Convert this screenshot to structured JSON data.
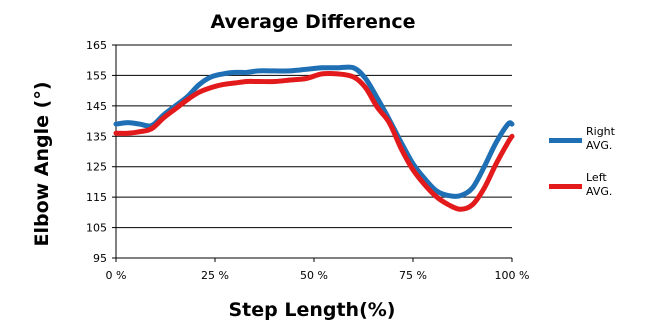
{
  "chart_data": {
    "type": "line",
    "title": "Average Difference",
    "xlabel": "Step Length(%)",
    "ylabel": "Elbow Angle (°)",
    "xlim": [
      0,
      100
    ],
    "ylim": [
      95,
      165
    ],
    "x_ticks": [
      0,
      25,
      50,
      75,
      100
    ],
    "x_tick_labels": [
      "0 %",
      "25 %",
      "50 %",
      "75 %",
      "100 %"
    ],
    "y_ticks": [
      95,
      105,
      115,
      125,
      135,
      145,
      155,
      165
    ],
    "y_tick_labels": [
      "95",
      "105",
      "115",
      "125",
      "135",
      "145",
      "155",
      "165"
    ],
    "grid": true,
    "legend_position": "right",
    "series": [
      {
        "name": "Right\nAVG.",
        "legend_lines": [
          "Right",
          "AVG."
        ],
        "color": "#1f6fb5",
        "x": [
          0,
          3,
          6,
          9,
          12,
          15,
          18,
          21,
          24,
          27,
          30,
          33,
          36,
          40,
          44,
          48,
          52,
          56,
          60,
          63,
          66,
          69,
          72,
          75,
          78,
          81,
          84,
          87,
          90,
          93,
          96,
          99,
          100
        ],
        "y": [
          139,
          139.5,
          139,
          138.5,
          142,
          145,
          148,
          152,
          154.5,
          155.5,
          156,
          156,
          156.5,
          156.5,
          156.5,
          157,
          157.5,
          157.5,
          157.5,
          154,
          147.5,
          140.5,
          133,
          126,
          121,
          117,
          115.5,
          115.5,
          118,
          125,
          133,
          139,
          139
        ]
      },
      {
        "name": "Left\nAVG.",
        "legend_lines": [
          "Left",
          "AVG."
        ],
        "color": "#e31a1c",
        "x": [
          0,
          3,
          6,
          9,
          12,
          15,
          18,
          21,
          24,
          27,
          30,
          33,
          36,
          40,
          44,
          48,
          52,
          56,
          60,
          63,
          66,
          69,
          72,
          75,
          78,
          81,
          84,
          87,
          90,
          93,
          96,
          99,
          100
        ],
        "y": [
          136,
          136,
          136.5,
          137.5,
          141,
          144,
          147,
          149.5,
          151,
          152,
          152.5,
          153,
          153,
          153,
          153.5,
          154,
          155.5,
          155.5,
          154.5,
          151,
          144.5,
          139.5,
          131,
          124,
          119,
          115,
          112.5,
          111,
          112.5,
          118,
          126,
          133,
          135
        ]
      }
    ]
  }
}
